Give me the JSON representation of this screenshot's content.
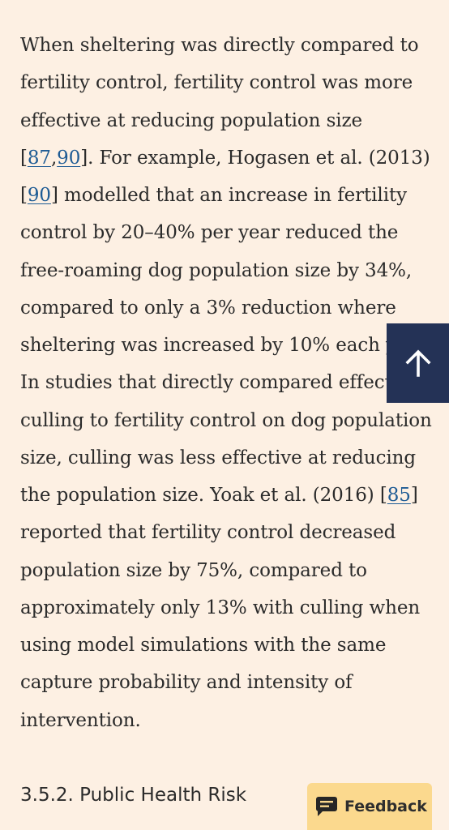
{
  "article": {
    "paragraph": {
      "seg1": "When sheltering was directly compared to fertility control, fertility control was more effective at reducing population size [",
      "ref1": "87",
      "sep1": ",",
      "ref2": "90",
      "seg2": "]. For example, Hogasen et al. (2013) [",
      "ref3": "90",
      "seg3": "] modelled that an increase in fertility control by 20–40% per year reduced the free-roaming dog population size by 34%, compared to only a 3% reduction where sheltering was increased by 10% each year. In studies that directly compared effects of culling to fertility control on dog population size, culling was less effective at reducing the population size. Yoak et al. (2016) [",
      "ref4": "85",
      "seg4": "] reported that fertility control decreased population size by 75%, compared to approximately only 13% with culling when using model simulations with the same capture probability and intensity of intervention."
    },
    "next_heading": "3.5.2. Public Health Risk"
  },
  "floating": {
    "back_to_top_icon": "arrow-up-icon",
    "feedback_label": "Feedback",
    "feedback_icon": "chat-bubble-icon"
  },
  "colors": {
    "background": "#fdf0e3",
    "text": "#2b2b2b",
    "link": "#1e5b94",
    "back_to_top_bg": "#243256",
    "feedback_bg": "#fbd98e"
  }
}
